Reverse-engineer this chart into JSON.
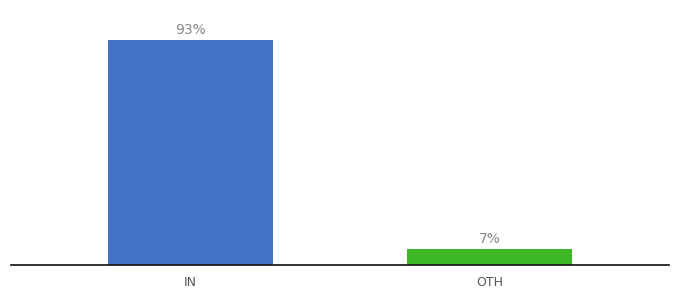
{
  "categories": [
    "IN",
    "OTH"
  ],
  "values": [
    93,
    7
  ],
  "bar_colors": [
    "#4472c4",
    "#3cb827"
  ],
  "labels": [
    "93%",
    "7%"
  ],
  "background_color": "#ffffff",
  "ylim": [
    0,
    105
  ],
  "label_fontsize": 10,
  "tick_fontsize": 9,
  "label_color": "#888888",
  "tick_color": "#555555",
  "bar_width": 0.55
}
